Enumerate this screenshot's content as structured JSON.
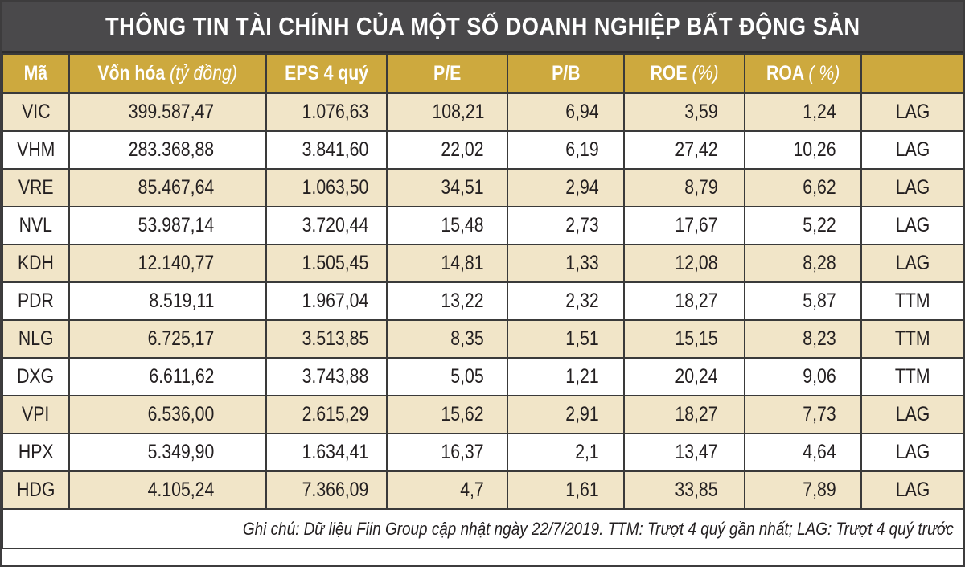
{
  "title": "THÔNG TIN TÀI CHÍNH CỦA MỘT SỐ DOANH NGHIỆP BẤT ĐỘNG SẢN",
  "colors": {
    "title_bg": "#4a494b",
    "header_bg": "#cda93e",
    "row_shade": "#f1e5c8",
    "row_plain": "#ffffff",
    "border": "#3a3a3a",
    "text": "#231f20"
  },
  "table": {
    "headers": {
      "code": "Mã",
      "cap_main": "Vốn hóa",
      "cap_unit": "(tỷ đồng)",
      "eps": "EPS 4 quý",
      "pe": "P/E",
      "pb": "P/B",
      "roe_main": "ROE",
      "roe_unit": "(%)",
      "roa_main": "ROA",
      "roa_unit": "( %)",
      "type": ""
    },
    "rows": [
      {
        "code": "VIC",
        "cap": "399.587,47",
        "eps": "1.076,63",
        "pe": "108,21",
        "pb": "6,94",
        "roe": "3,59",
        "roa": "1,24",
        "type": "LAG"
      },
      {
        "code": "VHM",
        "cap": "283.368,88",
        "eps": "3.841,60",
        "pe": "22,02",
        "pb": "6,19",
        "roe": "27,42",
        "roa": "10,26",
        "type": "LAG"
      },
      {
        "code": "VRE",
        "cap": "85.467,64",
        "eps": "1.063,50",
        "pe": "34,51",
        "pb": "2,94",
        "roe": "8,79",
        "roa": "6,62",
        "type": "LAG"
      },
      {
        "code": "NVL",
        "cap": "53.987,14",
        "eps": "3.720,44",
        "pe": "15,48",
        "pb": "2,73",
        "roe": "17,67",
        "roa": "5,22",
        "type": "LAG"
      },
      {
        "code": "KDH",
        "cap": "12.140,77",
        "eps": "1.505,45",
        "pe": "14,81",
        "pb": "1,33",
        "roe": "12,08",
        "roa": "8,28",
        "type": "LAG"
      },
      {
        "code": "PDR",
        "cap": "8.519,11",
        "eps": "1.967,04",
        "pe": "13,22",
        "pb": "2,32",
        "roe": "18,27",
        "roa": "5,87",
        "type": "TTM"
      },
      {
        "code": "NLG",
        "cap": "6.725,17",
        "eps": "3.513,85",
        "pe": "8,35",
        "pb": "1,51",
        "roe": "15,15",
        "roa": "8,23",
        "type": "TTM"
      },
      {
        "code": "DXG",
        "cap": "6.611,62",
        "eps": "3.743,88",
        "pe": "5,05",
        "pb": "1,21",
        "roe": "20,24",
        "roa": "9,06",
        "type": "TTM"
      },
      {
        "code": "VPI",
        "cap": "6.536,00",
        "eps": "2.615,29",
        "pe": "15,62",
        "pb": "2,91",
        "roe": "18,27",
        "roa": "7,73",
        "type": "LAG"
      },
      {
        "code": "HPX",
        "cap": "5.349,90",
        "eps": "1.634,41",
        "pe": "16,37",
        "pb": "2,1",
        "roe": "13,47",
        "roa": "4,64",
        "type": "LAG"
      },
      {
        "code": "HDG",
        "cap": "4.105,24",
        "eps": "7.366,09",
        "pe": "4,7",
        "pb": "1,61",
        "roe": "33,85",
        "roa": "7,89",
        "type": "LAG"
      }
    ]
  },
  "footnote": "Ghi chú: Dữ liệu Fiin Group cập nhật ngày 22/7/2019. TTM: Trượt 4 quý gần nhất; LAG: Trượt 4 quý trước"
}
